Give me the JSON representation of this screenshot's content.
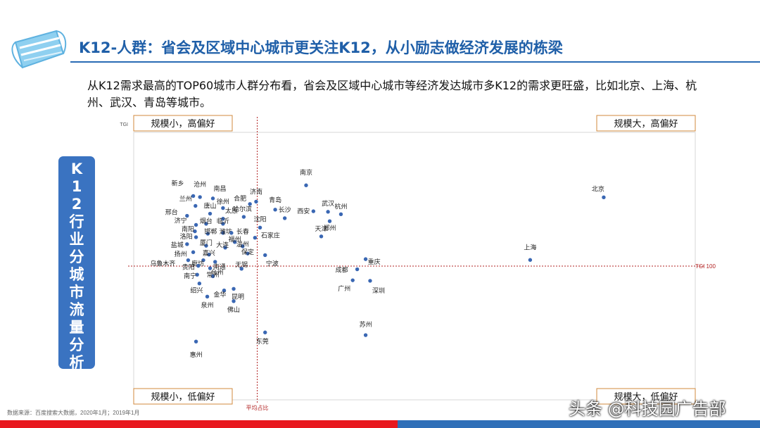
{
  "header": {
    "title": "K12-人群：省会及区域中心城市更关注K12，从小励志做经济发展的栋梁",
    "subtitle": "从K12需求最高的TOP60城市人群分布看，省会及区域中心城市等经济发达城市多K12的需求更旺盛，比如北京、上海、杭州、武汉、青岛等城市。"
  },
  "side_label": {
    "chars": [
      "K",
      "1",
      "2",
      "行",
      "业",
      "分",
      "城",
      "市",
      "流",
      "量",
      "分",
      "析"
    ]
  },
  "footer": {
    "source": "数据来源：百度搜索大数据，2020年1月；2019年1月",
    "watermark": "头条 @科技园广告部"
  },
  "colors": {
    "accent": "#1f5fa8",
    "point": "#3a67b3",
    "refline": "#b22222",
    "quadrant_border": "#d08a3c"
  },
  "chart_data": {
    "type": "scatter",
    "xlabel": "",
    "ylabel": "TGI",
    "xlim": [
      0,
      100
    ],
    "ylim": [
      0,
      100
    ],
    "reference_lines": {
      "x": {
        "value": 22,
        "label": "平均占比"
      },
      "y": {
        "value": 50,
        "label": "TGI 100"
      }
    },
    "quadrants": {
      "top_left": "规模小，高偏好",
      "top_right": "规模大，高偏好",
      "bottom_left": "规模小，低偏好",
      "bottom_right": "规模大，低偏好"
    },
    "points": [
      {
        "name": "北京",
        "x": 83.7,
        "y": 75.7
      },
      {
        "name": "上海",
        "x": 70.6,
        "y": 52.3
      },
      {
        "name": "南京",
        "x": 30.7,
        "y": 80.2
      },
      {
        "name": "新乡",
        "x": 10.6,
        "y": 76.2
      },
      {
        "name": "沧州",
        "x": 11.8,
        "y": 75.8
      },
      {
        "name": "南昌",
        "x": 14.1,
        "y": 75.3
      },
      {
        "name": "济南",
        "x": 21.8,
        "y": 74.1
      },
      {
        "name": "合肥",
        "x": 20.7,
        "y": 73.2
      },
      {
        "name": "徐州",
        "x": 15.9,
        "y": 71.7
      },
      {
        "name": "兰州",
        "x": 11.0,
        "y": 72.5
      },
      {
        "name": "青岛",
        "x": 25.2,
        "y": 71.1
      },
      {
        "name": "长沙",
        "x": 26.9,
        "y": 67.9
      },
      {
        "name": "唐山",
        "x": 13.6,
        "y": 69.6
      },
      {
        "name": "邢台",
        "x": 9.5,
        "y": 68.8
      },
      {
        "name": "哈尔滨",
        "x": 19.6,
        "y": 68.4
      },
      {
        "name": "西安",
        "x": 32.0,
        "y": 70.5
      },
      {
        "name": "武汉",
        "x": 34.6,
        "y": 70.3
      },
      {
        "name": "杭州",
        "x": 36.9,
        "y": 69.4
      },
      {
        "name": "郑州",
        "x": 34.9,
        "y": 66.8
      },
      {
        "name": "太原",
        "x": 15.9,
        "y": 67.7
      },
      {
        "name": "济宁",
        "x": 11.1,
        "y": 65.4
      },
      {
        "name": "烟台",
        "x": 12.9,
        "y": 65.8
      },
      {
        "name": "临沂",
        "x": 15.9,
        "y": 65.8
      },
      {
        "name": "沈阳",
        "x": 22.5,
        "y": 64.4
      },
      {
        "name": "南阳",
        "x": 10.9,
        "y": 63.0
      },
      {
        "name": "邯郸",
        "x": 13.2,
        "y": 62.1
      },
      {
        "name": "潍坊",
        "x": 15.9,
        "y": 62.4
      },
      {
        "name": "长春",
        "x": 17.4,
        "y": 62.4
      },
      {
        "name": "天津",
        "x": 33.4,
        "y": 61.1
      },
      {
        "name": "洛阳",
        "x": 11.1,
        "y": 60.8
      },
      {
        "name": "石家庄",
        "x": 21.6,
        "y": 60.6
      },
      {
        "name": "福州",
        "x": 18.0,
        "y": 59.0
      },
      {
        "name": "盐城",
        "x": 9.5,
        "y": 58.2
      },
      {
        "name": "厦门",
        "x": 12.9,
        "y": 57.6
      },
      {
        "name": "大连",
        "x": 16.3,
        "y": 56.9
      },
      {
        "name": "温州",
        "x": 19.4,
        "y": 57.4
      },
      {
        "name": "扬州",
        "x": 10.6,
        "y": 55.2
      },
      {
        "name": "保定",
        "x": 20.3,
        "y": 54.7
      },
      {
        "name": "嘉兴",
        "x": 13.4,
        "y": 54.3
      },
      {
        "name": "廊坊",
        "x": 12.4,
        "y": 52.2
      },
      {
        "name": "南通",
        "x": 14.5,
        "y": 51.6
      },
      {
        "name": "乌鲁木齐",
        "x": 9.7,
        "y": 52.2
      },
      {
        "name": "宁波",
        "x": 23.4,
        "y": 54.1
      },
      {
        "name": "重庆",
        "x": 41.3,
        "y": 52.6
      },
      {
        "name": "贵阳",
        "x": 11.5,
        "y": 50.1
      },
      {
        "name": "台州",
        "x": 13.6,
        "y": 49.2
      },
      {
        "name": "无锡",
        "x": 19.2,
        "y": 49.0
      },
      {
        "name": "成都",
        "x": 39.8,
        "y": 48.8
      },
      {
        "name": "南宁",
        "x": 11.3,
        "y": 46.8
      },
      {
        "name": "常州",
        "x": 14.1,
        "y": 46.2
      },
      {
        "name": "广州",
        "x": 39.0,
        "y": 44.7
      },
      {
        "name": "深圳",
        "x": 42.1,
        "y": 44.5
      },
      {
        "name": "绍兴",
        "x": 11.7,
        "y": 43.5
      },
      {
        "name": "金华",
        "x": 16.1,
        "y": 40.9
      },
      {
        "name": "昆明",
        "x": 17.8,
        "y": 41.5
      },
      {
        "name": "泉州",
        "x": 13.1,
        "y": 38.6
      },
      {
        "name": "佛山",
        "x": 17.8,
        "y": 36.9
      },
      {
        "name": "苏州",
        "x": 41.3,
        "y": 24.2
      },
      {
        "name": "东莞",
        "x": 23.4,
        "y": 25.2
      },
      {
        "name": "惠州",
        "x": 11.1,
        "y": 21.8
      }
    ]
  }
}
